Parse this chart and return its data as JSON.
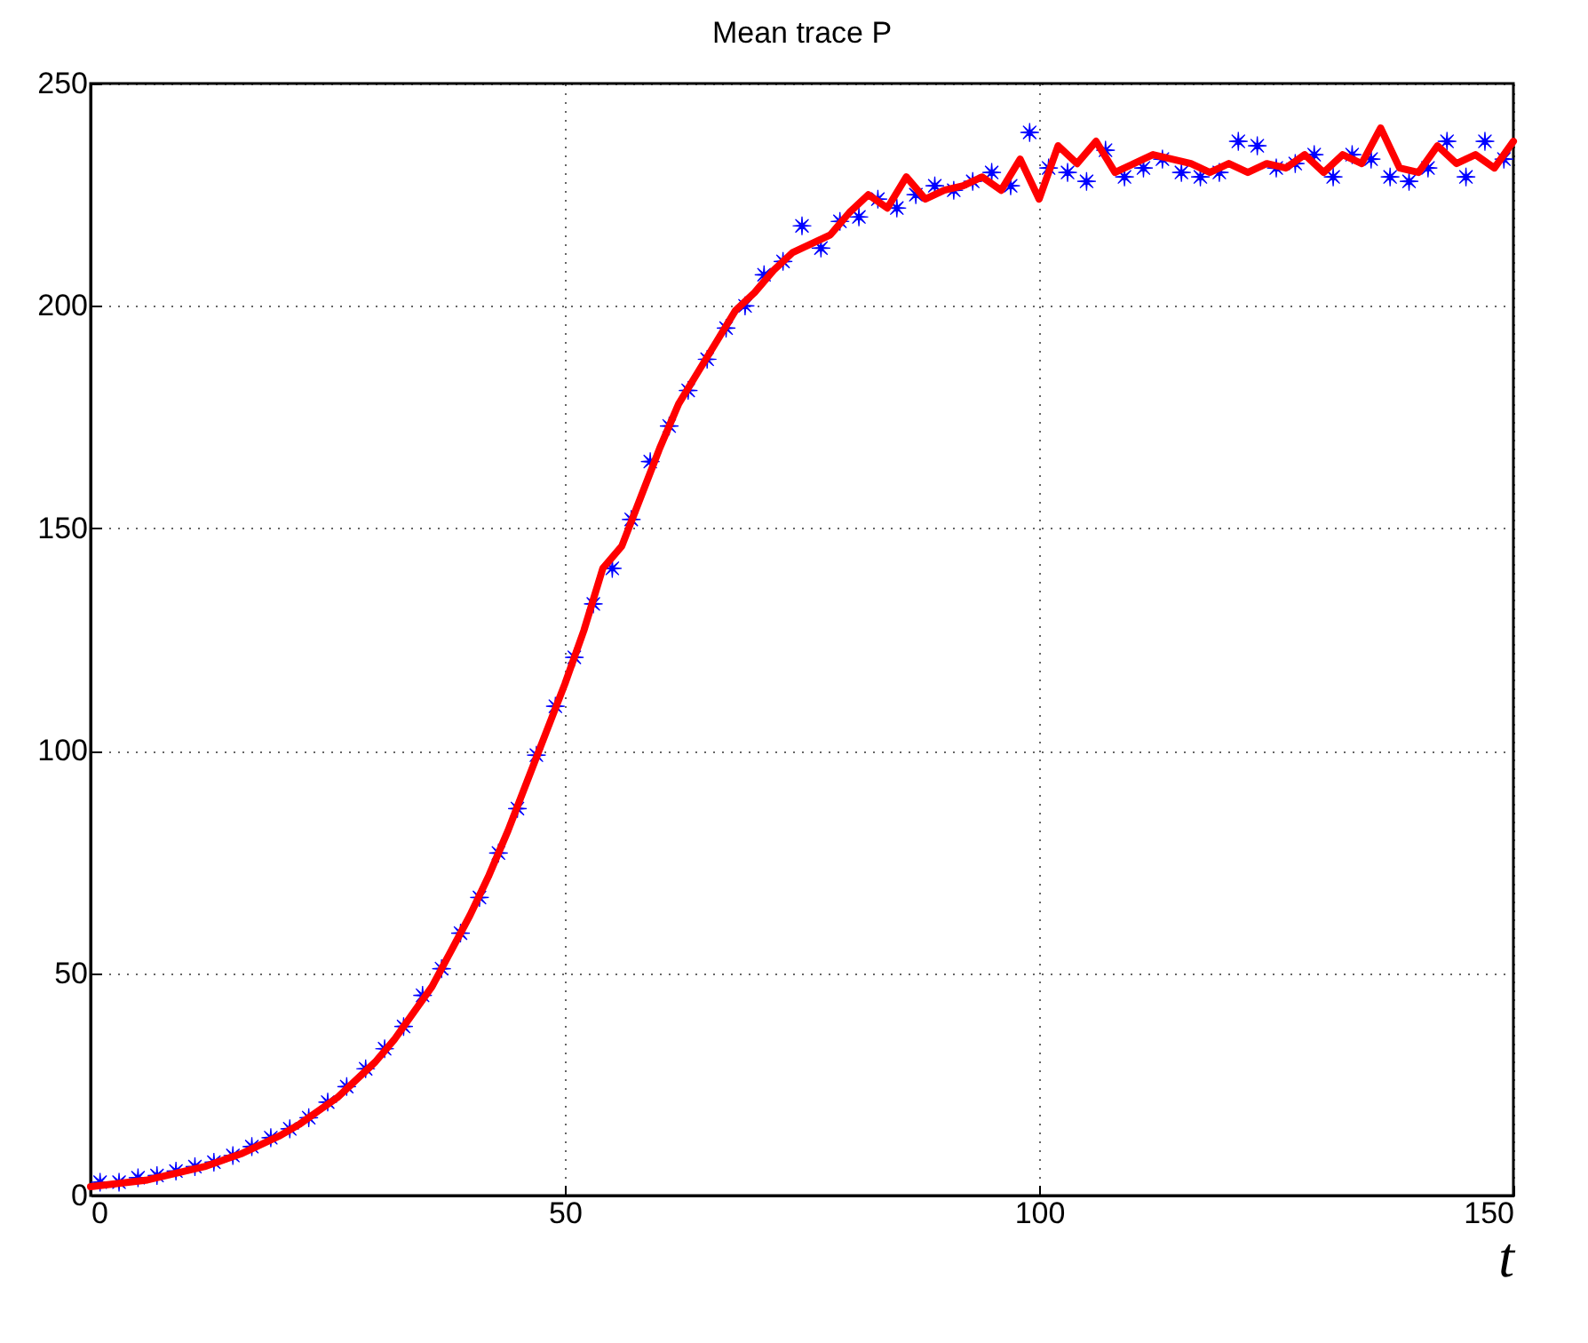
{
  "chart_data": {
    "type": "line",
    "title": "Mean trace P",
    "xlabel": "t",
    "xlim": [
      0,
      150
    ],
    "xticks": [
      0,
      50,
      100,
      150
    ],
    "ylim": [
      0,
      250
    ],
    "yticks": [
      0,
      50,
      100,
      150,
      200,
      250
    ],
    "grid": true,
    "series": [
      {
        "type": "scatter",
        "marker": "star",
        "color": "#0000ff",
        "x": [
          1,
          3,
          5,
          7,
          9,
          11,
          13,
          15,
          17,
          19,
          21,
          23,
          25,
          27,
          29,
          31,
          33,
          35,
          37,
          39,
          41,
          43,
          45,
          47,
          49,
          51,
          53,
          55,
          57,
          59,
          61,
          63,
          65,
          67,
          69,
          71,
          73,
          75,
          77,
          79,
          81,
          83,
          85,
          87,
          89,
          91,
          93,
          95,
          97,
          99,
          101,
          103,
          105,
          107,
          109,
          111,
          113,
          115,
          117,
          119,
          121,
          123,
          125,
          127,
          129,
          131,
          133,
          135,
          137,
          139,
          141,
          143,
          145,
          147,
          149
        ],
        "values": [
          3,
          3,
          4,
          4.5,
          5.5,
          6.5,
          7.5,
          9,
          11,
          13,
          15,
          17.5,
          21,
          24.5,
          28.5,
          33,
          38,
          45,
          51,
          59,
          67,
          77,
          87,
          99,
          110,
          121,
          133,
          141,
          152,
          165,
          173,
          181,
          188,
          195,
          200,
          207,
          210,
          218,
          213,
          219,
          220,
          224,
          222,
          225,
          227,
          226,
          228,
          230,
          227,
          239,
          231,
          230,
          228,
          235,
          229,
          231,
          233,
          230,
          229,
          230,
          237,
          236,
          231,
          232,
          234,
          229,
          234,
          233,
          229,
          228,
          231,
          237,
          229,
          237,
          233
        ]
      },
      {
        "line_style": "solid",
        "color": "#ff0000",
        "x": [
          0,
          2,
          4,
          6,
          8,
          10,
          12,
          14,
          16,
          18,
          20,
          22,
          24,
          26,
          28,
          30,
          32,
          34,
          36,
          38,
          40,
          42,
          44,
          46,
          48,
          50,
          52,
          54,
          56,
          58,
          60,
          62,
          64,
          66,
          68,
          70,
          72,
          74,
          76,
          78,
          80,
          82,
          84,
          86,
          88,
          90,
          92,
          94,
          96,
          98,
          100,
          102,
          104,
          106,
          108,
          110,
          112,
          114,
          116,
          118,
          120,
          122,
          124,
          126,
          128,
          130,
          132,
          134,
          136,
          138,
          140,
          142,
          144,
          146,
          148,
          150
        ],
        "values": [
          2,
          2.5,
          3,
          3.5,
          4.5,
          5.5,
          6.5,
          8,
          9.5,
          11.5,
          13.5,
          16,
          19,
          22,
          26,
          30,
          35,
          41,
          47,
          55,
          63,
          72,
          82,
          93,
          104,
          115,
          127,
          141,
          146,
          157,
          168,
          178,
          185,
          192,
          199,
          203,
          208,
          212,
          214,
          216,
          221,
          225,
          222,
          229,
          224,
          226,
          227,
          229,
          226,
          233,
          224,
          236,
          232,
          237,
          230,
          232,
          234,
          233,
          232,
          230,
          232,
          230,
          232,
          231,
          234,
          230,
          234,
          232,
          240,
          231,
          230,
          236,
          232,
          234,
          231,
          237
        ]
      }
    ]
  }
}
